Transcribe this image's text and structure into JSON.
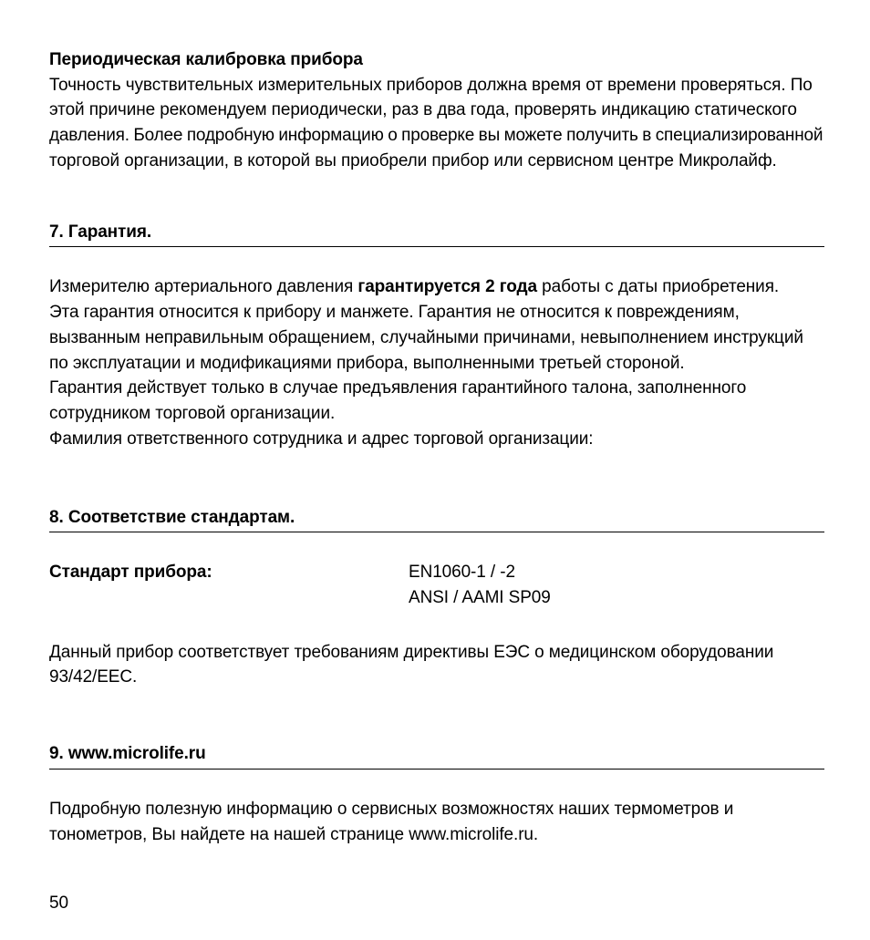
{
  "calibration": {
    "title": "Периодическая калибровка прибора",
    "line1": "Точность чувствительных измерительных приборов должна время от времени проверяться. По",
    "line2": "этой причине рекомендуем периодически, раз в два года, проверять индикацию статического",
    "line3": "давления. Более подробную информацию о проверке вы можете получить в специализированной",
    "line4": "торговой организации, в которой вы приобрели прибор или сервисном центре Микролайф."
  },
  "section7": {
    "heading": "7. Гарантия.",
    "p1_prefix": "Измерителю артериального давления ",
    "p1_bold": "гарантируется 2 года",
    "p1_suffix": " работы с даты приобретения.",
    "line2": "Эта гарантия относится к прибору и манжете. Гарантия не относится к повреждениям,",
    "line3": "вызванным неправильным обращением, случайными причинами, невыполнением инструкций",
    "line4": "по эксплуатации и модификациями прибора, выполненными третьей стороной.",
    "line5": "Гарантия действует только в случае предъявления гарантийного талона, заполненного",
    "line6": "сотрудником торговой организации.",
    "line7": "Фамилия ответственного сотрудника и адрес торговой организации:"
  },
  "section8": {
    "heading": "8. Соответствие стандартам.",
    "label": "Стандарт прибора:",
    "value1": "EN1060-1 / -2",
    "value2": "ANSI / AAMI SP09",
    "compliance_l1": "Данный прибор соответствует требованиям директивы ЕЭС о медицинском оборудовании",
    "compliance_l2": "93/42/EEC."
  },
  "section9": {
    "heading": "9. www.microlife.ru",
    "body_l1": "Подробную полезную информацию о сервисных возможностях наших термометров и",
    "body_l2": "тонометров, Вы найдете на нашей странице www.microlife.ru."
  },
  "page_number": "50"
}
